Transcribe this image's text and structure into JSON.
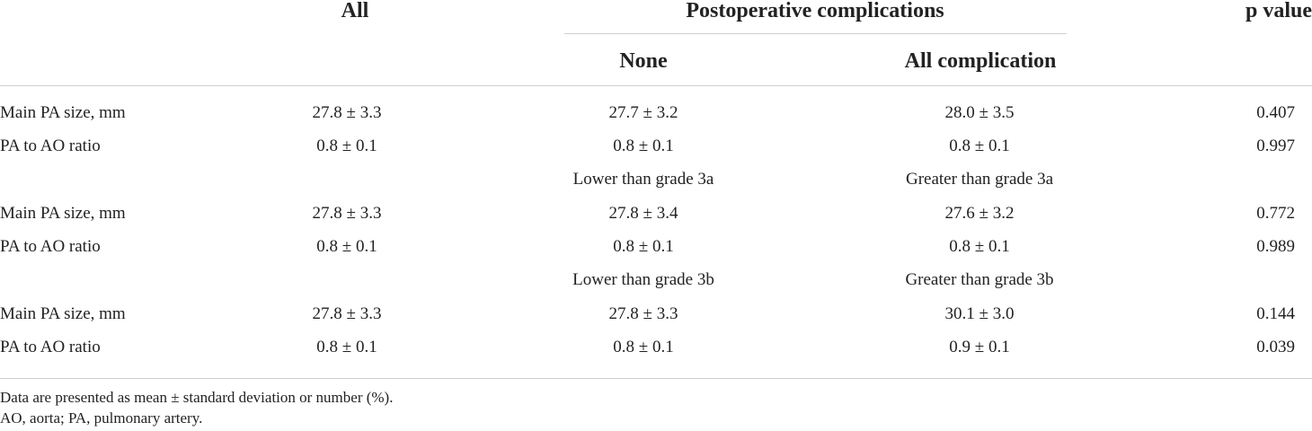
{
  "table": {
    "header": {
      "all": "All",
      "group": "Postoperative complications",
      "p_value": "p value",
      "none": "None",
      "all_complication": "All complication"
    },
    "rows": [
      {
        "label": "Main PA size, mm",
        "all": "27.8 ± 3.3",
        "c1": "27.7 ± 3.2",
        "c2": "28.0 ± 3.5",
        "p": "0.407"
      },
      {
        "label": "PA to AO ratio",
        "all": "0.8 ± 0.1",
        "c1": "0.8 ± 0.1",
        "c2": "0.8 ± 0.1",
        "p": "0.997"
      },
      {
        "label": "",
        "all": "",
        "c1": "Lower than grade 3a",
        "c2": "Greater than grade 3a",
        "p": ""
      },
      {
        "label": "Main PA size, mm",
        "all": "27.8 ± 3.3",
        "c1": "27.8 ± 3.4",
        "c2": "27.6 ± 3.2",
        "p": "0.772"
      },
      {
        "label": "PA to AO ratio",
        "all": "0.8 ± 0.1",
        "c1": "0.8 ± 0.1",
        "c2": "0.8 ± 0.1",
        "p": "0.989"
      },
      {
        "label": "",
        "all": "",
        "c1": "Lower than grade 3b",
        "c2": "Greater than grade 3b",
        "p": ""
      },
      {
        "label": "Main PA size, mm",
        "all": "27.8 ± 3.3",
        "c1": "27.8 ± 3.3",
        "c2": "30.1 ± 3.0",
        "p": "0.144"
      },
      {
        "label": "PA to AO ratio",
        "all": "0.8 ± 0.1",
        "c1": "0.8 ± 0.1",
        "c2": "0.9 ± 0.1",
        "p": "0.039"
      }
    ],
    "footnotes": [
      "Data are presented as mean ± standard deviation or number (%).",
      "AO, aorta; PA, pulmonary artery."
    ]
  }
}
